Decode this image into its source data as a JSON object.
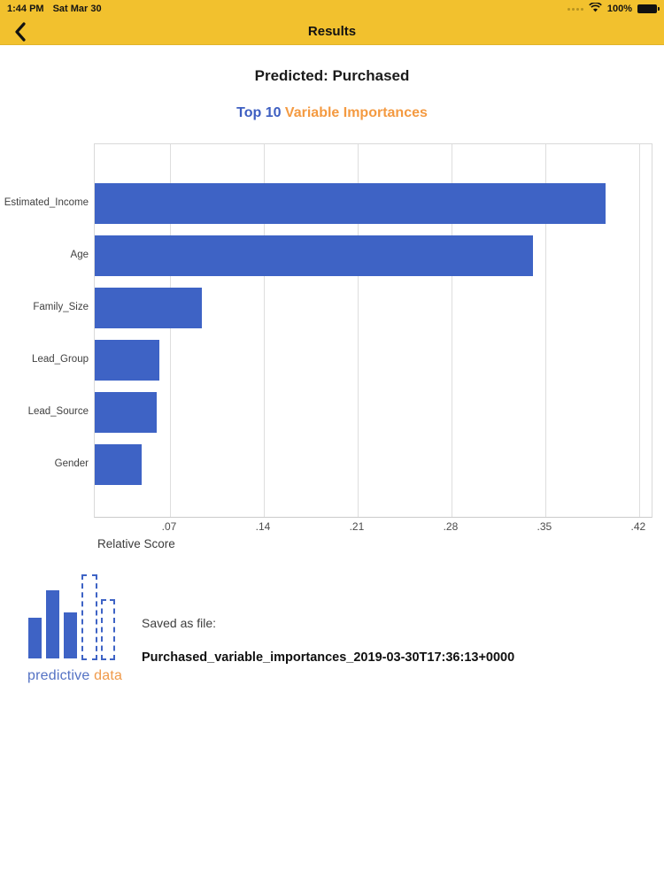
{
  "status_bar": {
    "time": "1:44 PM",
    "date": "Sat Mar 30",
    "battery_percent": "100%"
  },
  "nav": {
    "title": "Results"
  },
  "page": {
    "heading": "Predicted: Purchased",
    "subtitle_primary": "Top 10",
    "subtitle_secondary": " Variable Importances"
  },
  "chart_data": {
    "type": "bar",
    "orientation": "horizontal",
    "title": "Top 10 Variable Importances",
    "categories": [
      "Estimated_Income",
      "Age",
      "Family_Size",
      "Lead_Group",
      "Lead_Source",
      "Gender"
    ],
    "values": [
      0.395,
      0.341,
      0.094,
      0.062,
      0.06,
      0.049
    ],
    "xlabel": "Relative Score",
    "ylabel": "",
    "xtick_labels": [
      ".07",
      ".14",
      ".21",
      ".28",
      ".35",
      ".42"
    ],
    "xtick_values": [
      0.07,
      0.14,
      0.21,
      0.28,
      0.35,
      0.42
    ],
    "xlim": [
      0,
      0.43
    ],
    "grid": true,
    "legend": "none",
    "bar_color": "#3E63C5"
  },
  "footer": {
    "logo_text_primary": "predictive",
    "logo_text_secondary": " data",
    "saved_label": "Saved as file:",
    "filename": "Purchased_variable_importances_2019-03-30T17:36:13+0000"
  },
  "colors": {
    "accent_yellow": "#F2C12E",
    "bar_blue": "#3E63C5",
    "title_blue": "#3D5EC1",
    "title_orange": "#F49A41",
    "gridline": "#dedede"
  }
}
